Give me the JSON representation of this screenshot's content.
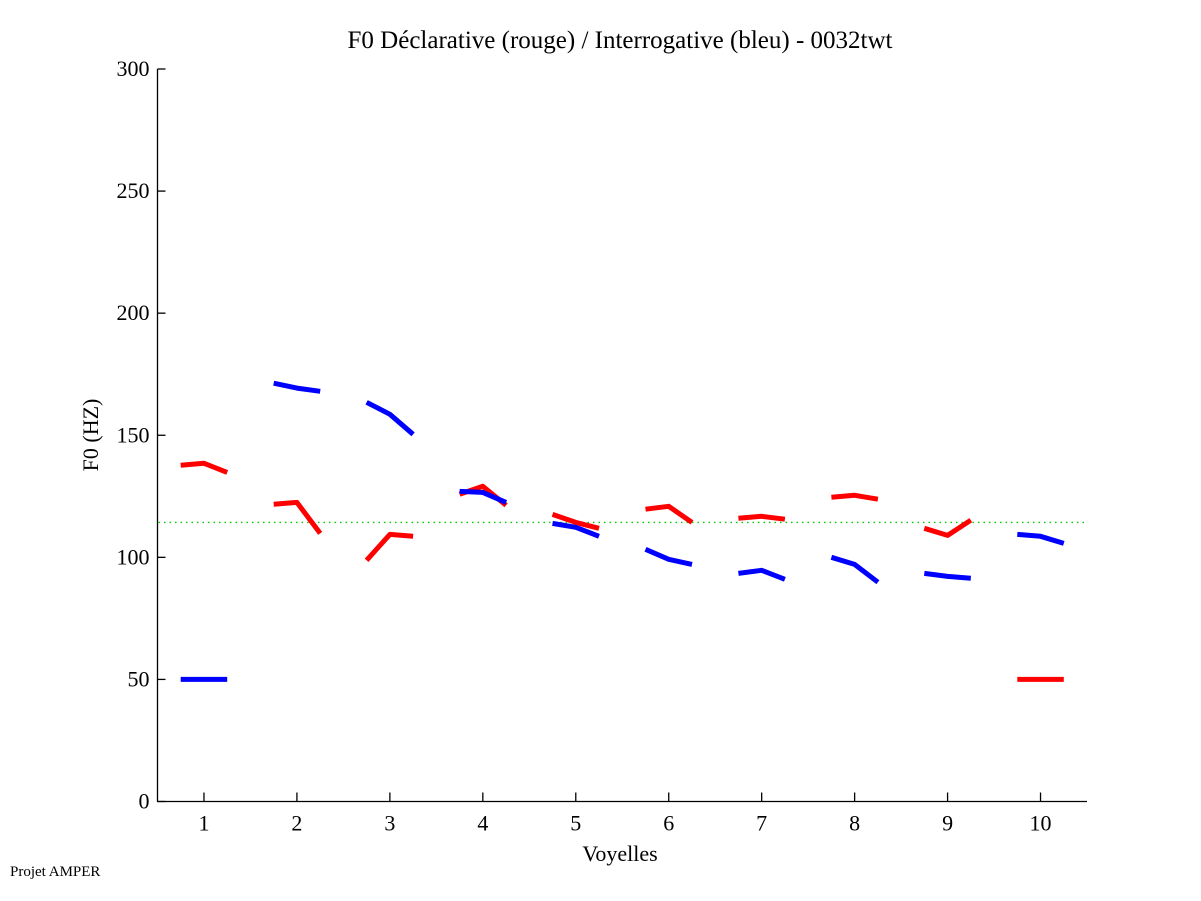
{
  "chart_data": {
    "type": "line",
    "title": "F0 Déclarative (rouge) / Interrogative (bleu) - 0032twt",
    "xlabel": "Voyelles",
    "ylabel": "F0 (HZ)",
    "xlim": [
      0.5,
      10.5
    ],
    "ylim": [
      0,
      300
    ],
    "x_ticks": [
      1,
      2,
      3,
      4,
      5,
      6,
      7,
      8,
      9,
      10
    ],
    "x_tick_labels": [
      "1",
      "2",
      "3",
      "4",
      "5",
      "6",
      "7",
      "8",
      "9",
      "10"
    ],
    "y_ticks": [
      0,
      50,
      100,
      150,
      200,
      250,
      300
    ],
    "y_tick_labels": [
      "0",
      "50",
      "100",
      "150",
      "200",
      "250",
      "300"
    ],
    "grid": false,
    "reference_line": {
      "y": 114.3,
      "color": "#00cc00",
      "style": "dotted"
    },
    "segment_offsets": [
      -0.25,
      0,
      0.25
    ],
    "series": [
      {
        "name": "Déclarative (rouge)",
        "color": "#ff0000",
        "segments": [
          {
            "vowel": 1,
            "values": [
              137.7,
              138.5,
              134.8
            ]
          },
          {
            "vowel": 2,
            "values": [
              121.7,
              122.5,
              109.8
            ]
          },
          {
            "vowel": 3,
            "values": [
              98.8,
              109.4,
              108.6
            ]
          },
          {
            "vowel": 4,
            "values": [
              125.8,
              129.1,
              121.3
            ]
          },
          {
            "vowel": 5,
            "values": [
              117.6,
              114.3,
              111.9
            ]
          },
          {
            "vowel": 6,
            "values": [
              119.7,
              120.9,
              114.3
            ]
          },
          {
            "vowel": 7,
            "values": [
              116.0,
              116.8,
              115.6
            ]
          },
          {
            "vowel": 8,
            "values": [
              124.6,
              125.4,
              123.8
            ]
          },
          {
            "vowel": 9,
            "values": [
              111.9,
              109.0,
              115.2
            ]
          },
          {
            "vowel": 10,
            "values": [
              50,
              50,
              50
            ]
          }
        ]
      },
      {
        "name": "Interrogative (bleu)",
        "color": "#0000ff",
        "segments": [
          {
            "vowel": 1,
            "values": [
              50,
              50,
              50
            ]
          },
          {
            "vowel": 2,
            "values": [
              171.3,
              169.3,
              168.0
            ]
          },
          {
            "vowel": 3,
            "values": [
              163.5,
              158.6,
              150.4
            ]
          },
          {
            "vowel": 4,
            "values": [
              127.0,
              126.6,
              122.5
            ]
          },
          {
            "vowel": 5,
            "values": [
              113.9,
              112.3,
              108.6
            ]
          },
          {
            "vowel": 6,
            "values": [
              103.3,
              99.2,
              97.1
            ]
          },
          {
            "vowel": 7,
            "values": [
              93.4,
              94.7,
              91.0
            ]
          },
          {
            "vowel": 8,
            "values": [
              100.0,
              97.1,
              89.8
            ]
          },
          {
            "vowel": 9,
            "values": [
              93.4,
              92.2,
              91.4
            ]
          },
          {
            "vowel": 10,
            "values": [
              109.4,
              108.6,
              105.7
            ]
          }
        ]
      }
    ]
  },
  "footer": {
    "text": "Projet AMPER"
  }
}
